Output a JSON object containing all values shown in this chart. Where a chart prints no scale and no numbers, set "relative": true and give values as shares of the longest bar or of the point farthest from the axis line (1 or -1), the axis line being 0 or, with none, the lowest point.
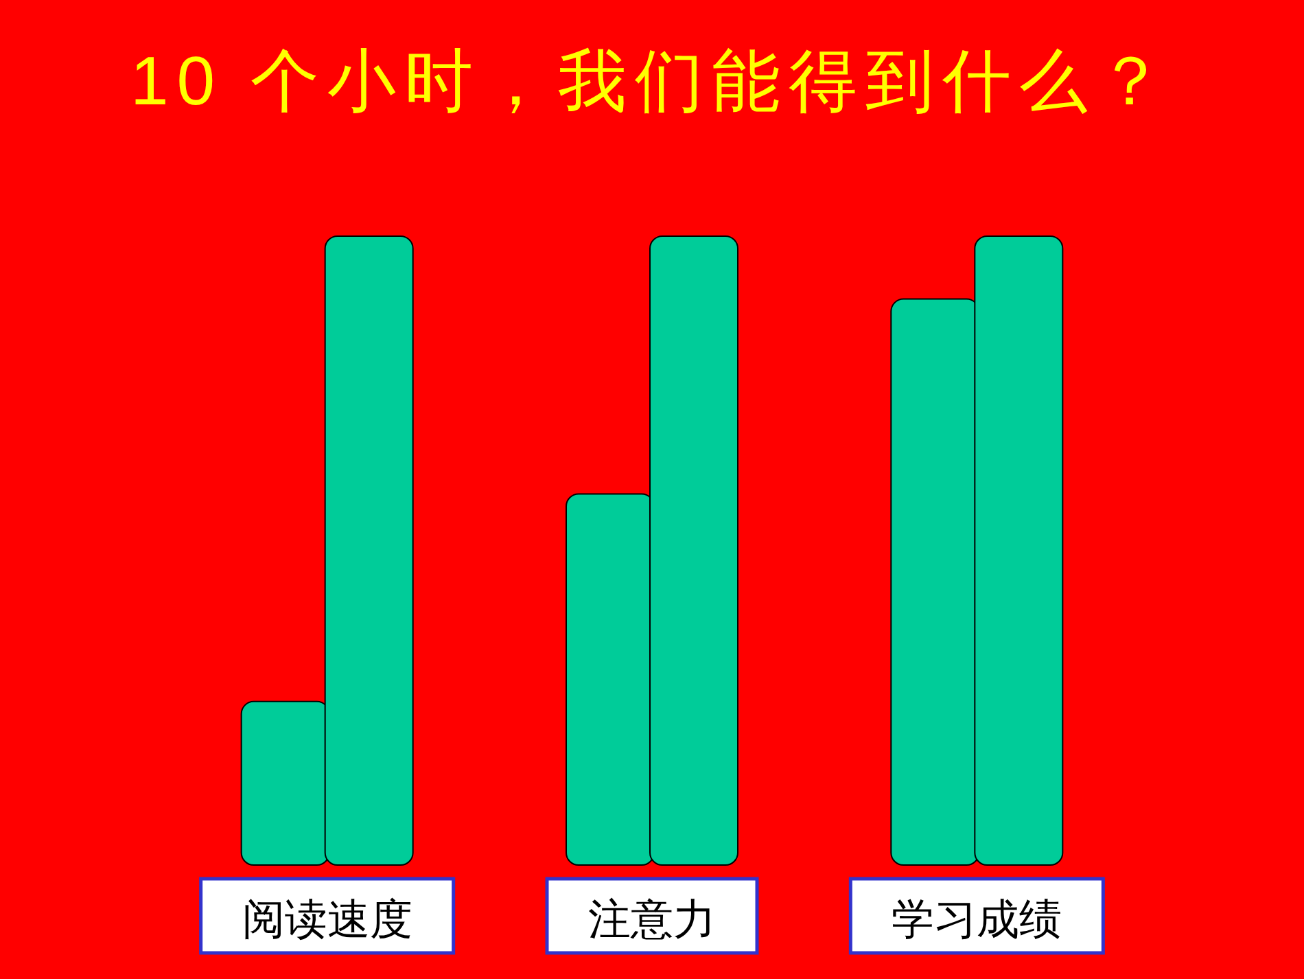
{
  "chart_data": {
    "type": "bar",
    "title": "10 个小时，我们能得到什么？",
    "categories": [
      "阅读速度",
      "注意力",
      "学习成绩"
    ],
    "relative": true,
    "series": [
      {
        "color": "#00cc99",
        "values": [
          0.26,
          0.59,
          0.9
        ]
      },
      {
        "color": "#00cc99",
        "values": [
          1,
          1,
          1
        ]
      }
    ]
  }
}
